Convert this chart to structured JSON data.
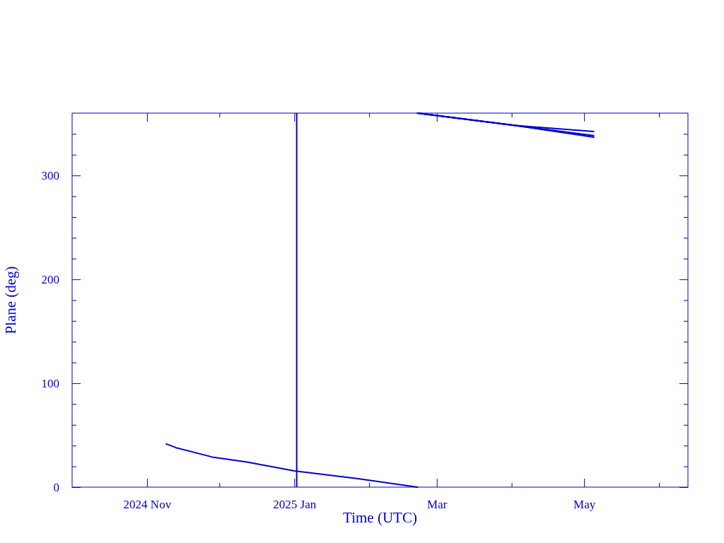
{
  "chart_data": {
    "type": "line",
    "xlabel": "Time (UTC)",
    "ylabel": "Plane (deg)",
    "xlim": [
      "2024-10-01",
      "2025-06-13"
    ],
    "xticks": [
      {
        "value": "2024-11-01",
        "label": "2024 Nov"
      },
      {
        "value": "2024-12-01",
        "label": null
      },
      {
        "value": "2025-01-01",
        "label": "2025 Jan"
      },
      {
        "value": "2025-02-01",
        "label": null
      },
      {
        "value": "2025-03-01",
        "label": "Mar"
      },
      {
        "value": "2025-04-01",
        "label": null
      },
      {
        "value": "2025-05-01",
        "label": "May"
      },
      {
        "value": "2025-06-01",
        "label": null
      }
    ],
    "ylim": [
      0,
      360
    ],
    "yticks": [
      0,
      {
        "value": 20,
        "label": null
      },
      {
        "value": 40,
        "label": null
      },
      {
        "value": 60,
        "label": null
      },
      {
        "value": 80,
        "label": null
      },
      100,
      {
        "value": 120,
        "label": null
      },
      {
        "value": 140,
        "label": null
      },
      {
        "value": 160,
        "label": null
      },
      {
        "value": 180,
        "label": null
      },
      200,
      {
        "value": 220,
        "label": null
      },
      {
        "value": 240,
        "label": null
      },
      {
        "value": 260,
        "label": null
      },
      {
        "value": 280,
        "label": null
      },
      300,
      {
        "value": 320,
        "label": null
      },
      {
        "value": 340,
        "label": null
      }
    ],
    "grid": false,
    "marker": "none",
    "line_style": "solid",
    "ref_lines": [
      {
        "axis": "x",
        "value": "2025-01-02",
        "color": "#0000cc"
      }
    ],
    "series": [
      {
        "color": "#0000cc",
        "x": [
          "2024-11-09",
          "2024-11-13",
          "2024-11-28",
          "2024-12-12",
          "2025-01-01",
          "2025-01-25",
          "2025-02-21"
        ],
        "values": [
          41.6,
          38,
          29,
          24.3,
          15.7,
          8.9,
          0
        ]
      },
      {
        "color": "#0000cc",
        "x": [
          "2025-02-21",
          "2025-04-02",
          "2025-05-05"
        ],
        "values": [
          360,
          348.2,
          342.3
        ]
      },
      {
        "color": "#0000cc",
        "x": [
          "2025-02-21",
          "2025-04-02",
          "2025-05-05"
        ],
        "values": [
          360,
          348.2,
          338.4
        ]
      },
      {
        "color": "#0000cc",
        "x": [
          "2025-02-21",
          "2025-04-02",
          "2025-05-05"
        ],
        "values": [
          360,
          348.2,
          336.8
        ]
      }
    ]
  }
}
